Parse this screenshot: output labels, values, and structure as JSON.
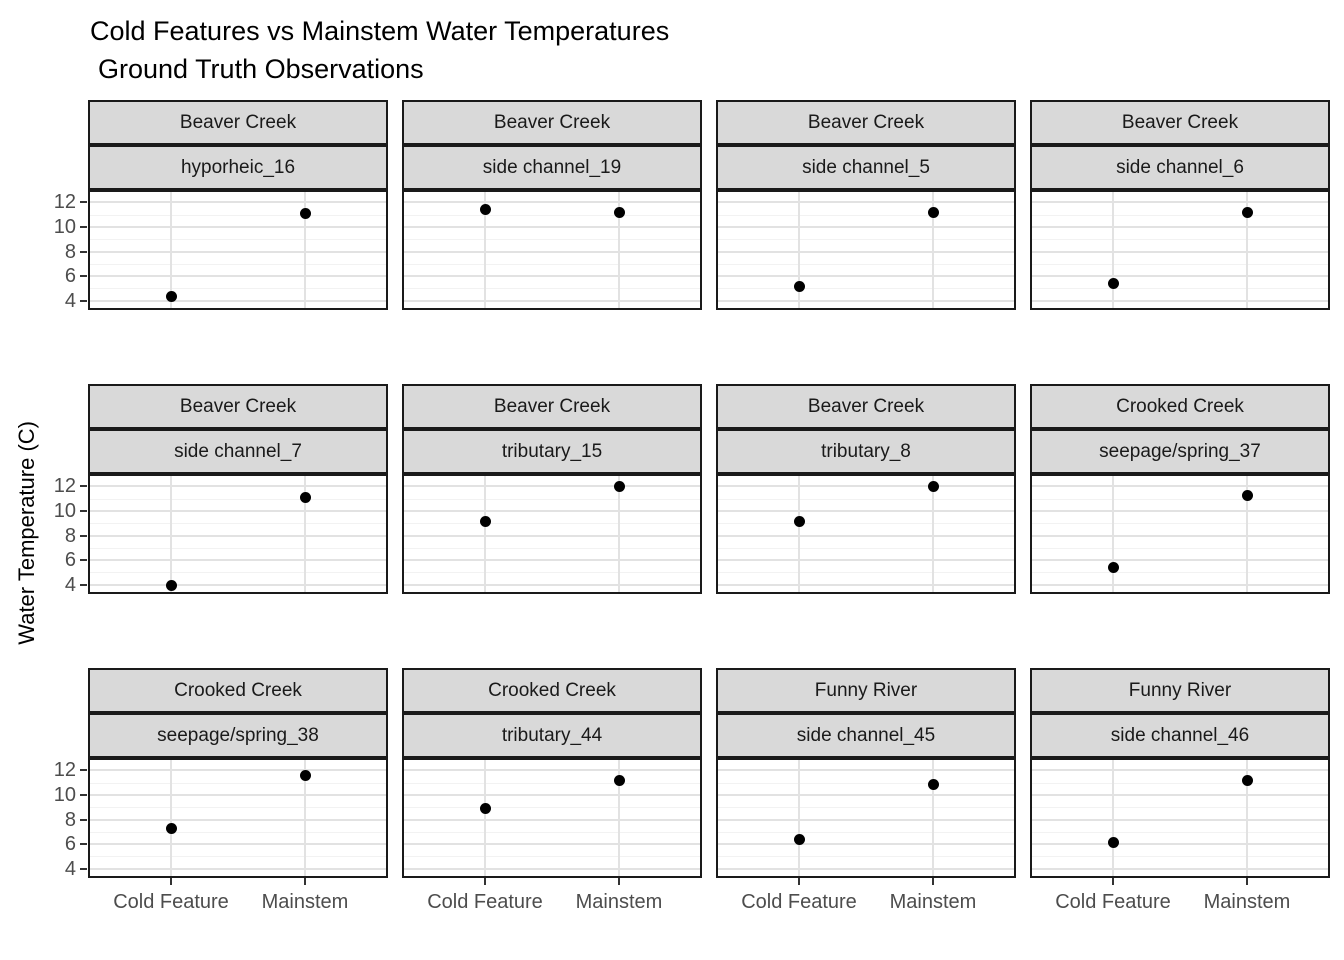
{
  "header": {
    "title": "Cold Features vs Mainstem Water Temperatures",
    "subtitle": "Ground Truth Observations"
  },
  "axes": {
    "y_label": "Water Temperature (C)",
    "x_category_labels": [
      "Cold Feature",
      "Mainstem"
    ],
    "y_tick_labels": [
      "4",
      "6",
      "8",
      "10",
      "12"
    ]
  },
  "chart_data": {
    "type": "scatter",
    "title": "Cold Features vs Mainstem Water Temperatures",
    "subtitle": "Ground Truth Observations",
    "ylabel": "Water Temperature (C)",
    "xlabel": "",
    "categories": [
      "Cold Feature",
      "Mainstem"
    ],
    "y_ticks": [
      4,
      6,
      8,
      10,
      12
    ],
    "ylim": [
      3.4,
      12.85
    ],
    "facet_layout": {
      "rows": 3,
      "cols": 4,
      "strip_lines": [
        "river",
        "site"
      ]
    },
    "grid": "major and minor horizontal, vertical at categories",
    "legend": "none",
    "panels": [
      {
        "river": "Beaver Creek",
        "site": "hyporheic_16",
        "cold_feature": 4.4,
        "mainstem": 11.1
      },
      {
        "river": "Beaver Creek",
        "site": "side channel_19",
        "cold_feature": 11.5,
        "mainstem": 11.2
      },
      {
        "river": "Beaver Creek",
        "site": "side channel_5",
        "cold_feature": 5.2,
        "mainstem": 11.2
      },
      {
        "river": "Beaver Creek",
        "site": "side channel_6",
        "cold_feature": 5.4,
        "mainstem": 11.2
      },
      {
        "river": "Beaver Creek",
        "site": "side channel_7",
        "cold_feature": 4.0,
        "mainstem": 11.1
      },
      {
        "river": "Beaver Creek",
        "site": "tributary_15",
        "cold_feature": 9.2,
        "mainstem": 12.0
      },
      {
        "river": "Beaver Creek",
        "site": "tributary_8",
        "cold_feature": 9.2,
        "mainstem": 12.0
      },
      {
        "river": "Crooked Creek",
        "site": "seepage/spring_37",
        "cold_feature": 5.4,
        "mainstem": 11.3
      },
      {
        "river": "Crooked Creek",
        "site": "seepage/spring_38",
        "cold_feature": 7.3,
        "mainstem": 11.6
      },
      {
        "river": "Crooked Creek",
        "site": "tributary_44",
        "cold_feature": 8.9,
        "mainstem": 11.2
      },
      {
        "river": "Funny River",
        "site": "side channel_45",
        "cold_feature": 6.4,
        "mainstem": 10.9
      },
      {
        "river": "Funny River",
        "site": "side channel_46",
        "cold_feature": 6.2,
        "mainstem": 11.2
      }
    ],
    "colors": {
      "point": "#000000",
      "strip_background": "#d9d9d9",
      "panel_border": "#1a1a1a",
      "grid_major": "#e2e2e2",
      "grid_minor": "#f2f2f2",
      "axis_text": "#4d4d4d",
      "title_text": "#000000"
    }
  }
}
